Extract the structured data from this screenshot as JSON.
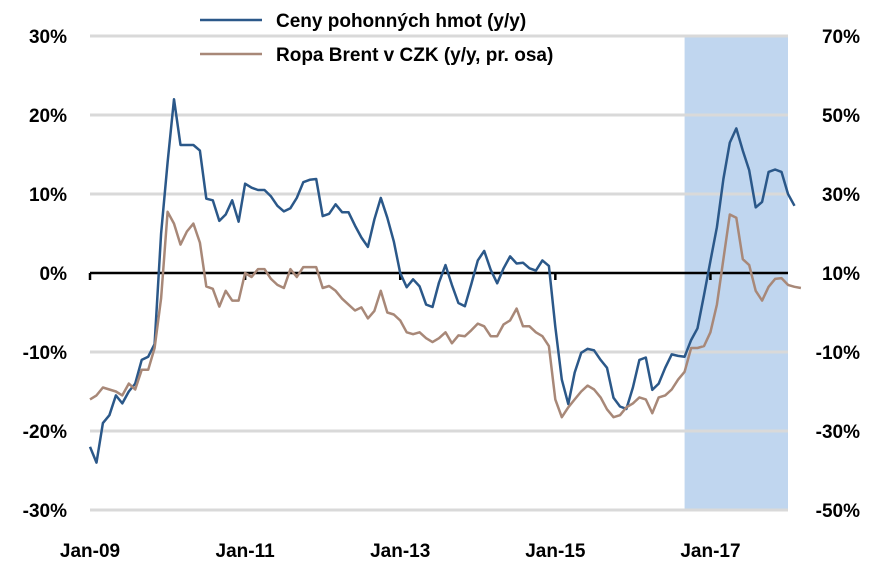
{
  "chart_data": {
    "type": "line",
    "title": "",
    "xlabel": "",
    "ylabel": "",
    "x_start": "2009-01",
    "x_end": "2018-01",
    "x_tick_labels": [
      "Jan-09",
      "Jan-11",
      "Jan-13",
      "Jan-15",
      "Jan-17"
    ],
    "ylim": [
      -30,
      30
    ],
    "y_tick_labels": [
      "30%",
      "20%",
      "10%",
      "0%",
      "-10%",
      "-20%",
      "-30%"
    ],
    "ylim_right": [
      -50,
      70
    ],
    "y2_tick_labels": [
      "70%",
      "50%",
      "30%",
      "10%",
      "-10%",
      "-30%",
      "-50%"
    ],
    "grid": "horizontal",
    "legend_position": "top",
    "shaded_region": {
      "from": "2016-09",
      "to": "2018-01",
      "color": "#c0d6ef"
    },
    "series": [
      {
        "name": "Ceny pohonných hmot (y/y)",
        "axis": "left",
        "color": "#2b5889",
        "values": [
          -22,
          -24,
          -19,
          -18,
          -15.5,
          -16.5,
          -15,
          -14,
          -11,
          -10.6,
          -9,
          5,
          14,
          22,
          16.2,
          16.2,
          16.2,
          15.5,
          9.4,
          9.2,
          6.6,
          7.4,
          9.2,
          6.5,
          11.3,
          10.8,
          10.5,
          10.5,
          9.7,
          8.5,
          7.8,
          8.2,
          9.5,
          11.5,
          11.8,
          11.9,
          7.2,
          7.5,
          8.7,
          7.7,
          7.7,
          6,
          4.5,
          3.3,
          6.8,
          9.5,
          7,
          4,
          0,
          -1.8,
          -0.8,
          -1.7,
          -4,
          -4.3,
          -1.2,
          1,
          -1.5,
          -3.8,
          -4.2,
          -1.4,
          1.6,
          2.8,
          0.4,
          -1.3,
          0.6,
          2.1,
          1.2,
          1.3,
          0.6,
          0.3,
          1.6,
          0.9,
          -6.8,
          -13.5,
          -16.6,
          -12.6,
          -10.1,
          -9.6,
          -9.8,
          -11,
          -12,
          -15.8,
          -16.9,
          -17.2,
          -14.5,
          -11,
          -10.7,
          -14.8,
          -14,
          -12,
          -10.3,
          -10.5,
          -10.6,
          -8.5,
          -7,
          -2.8,
          1.5,
          5.8,
          11.9,
          16.5,
          18.3,
          15.5,
          13,
          8.3,
          9,
          12.8,
          13.1,
          12.8,
          10,
          8.5
        ]
      },
      {
        "name": "Ropa Brent v CZK (y/y, pr. osa)",
        "axis": "right",
        "color": "#a88878",
        "values": [
          -22,
          -21,
          -19,
          -19.5,
          -20,
          -21,
          -18,
          -19.5,
          -14.5,
          -14.5,
          -9,
          3.6,
          25.5,
          22.5,
          17.2,
          20.5,
          22.5,
          17.7,
          6.6,
          6,
          1.5,
          5.5,
          3,
          3,
          10,
          9,
          11,
          11,
          8.5,
          7,
          6.2,
          11,
          9,
          11.5,
          11.5,
          11.5,
          6.2,
          6.7,
          5.5,
          3.5,
          2,
          0.5,
          1.3,
          -1.5,
          0.4,
          5.5,
          0,
          -0.5,
          -2,
          -5,
          -5.5,
          -5,
          -6.5,
          -7.5,
          -6.5,
          -5,
          -7.8,
          -5.8,
          -6,
          -4.5,
          -2.8,
          -3.5,
          -6,
          -6,
          -3,
          -2,
          1,
          -3.5,
          -3.5,
          -5,
          -6,
          -8.5,
          -22,
          -26.5,
          -24,
          -22,
          -20,
          -18.5,
          -19.5,
          -21.5,
          -24.5,
          -26.5,
          -26,
          -24,
          -23,
          -21.5,
          -22,
          -25.5,
          -21.5,
          -21,
          -19.5,
          -17,
          -15,
          -9,
          -9,
          -8.5,
          -5,
          2,
          13.5,
          24.8,
          24,
          13.5,
          12,
          5.5,
          3,
          6.5,
          8.5,
          8.7,
          7,
          6.5,
          6.2
        ]
      }
    ]
  }
}
